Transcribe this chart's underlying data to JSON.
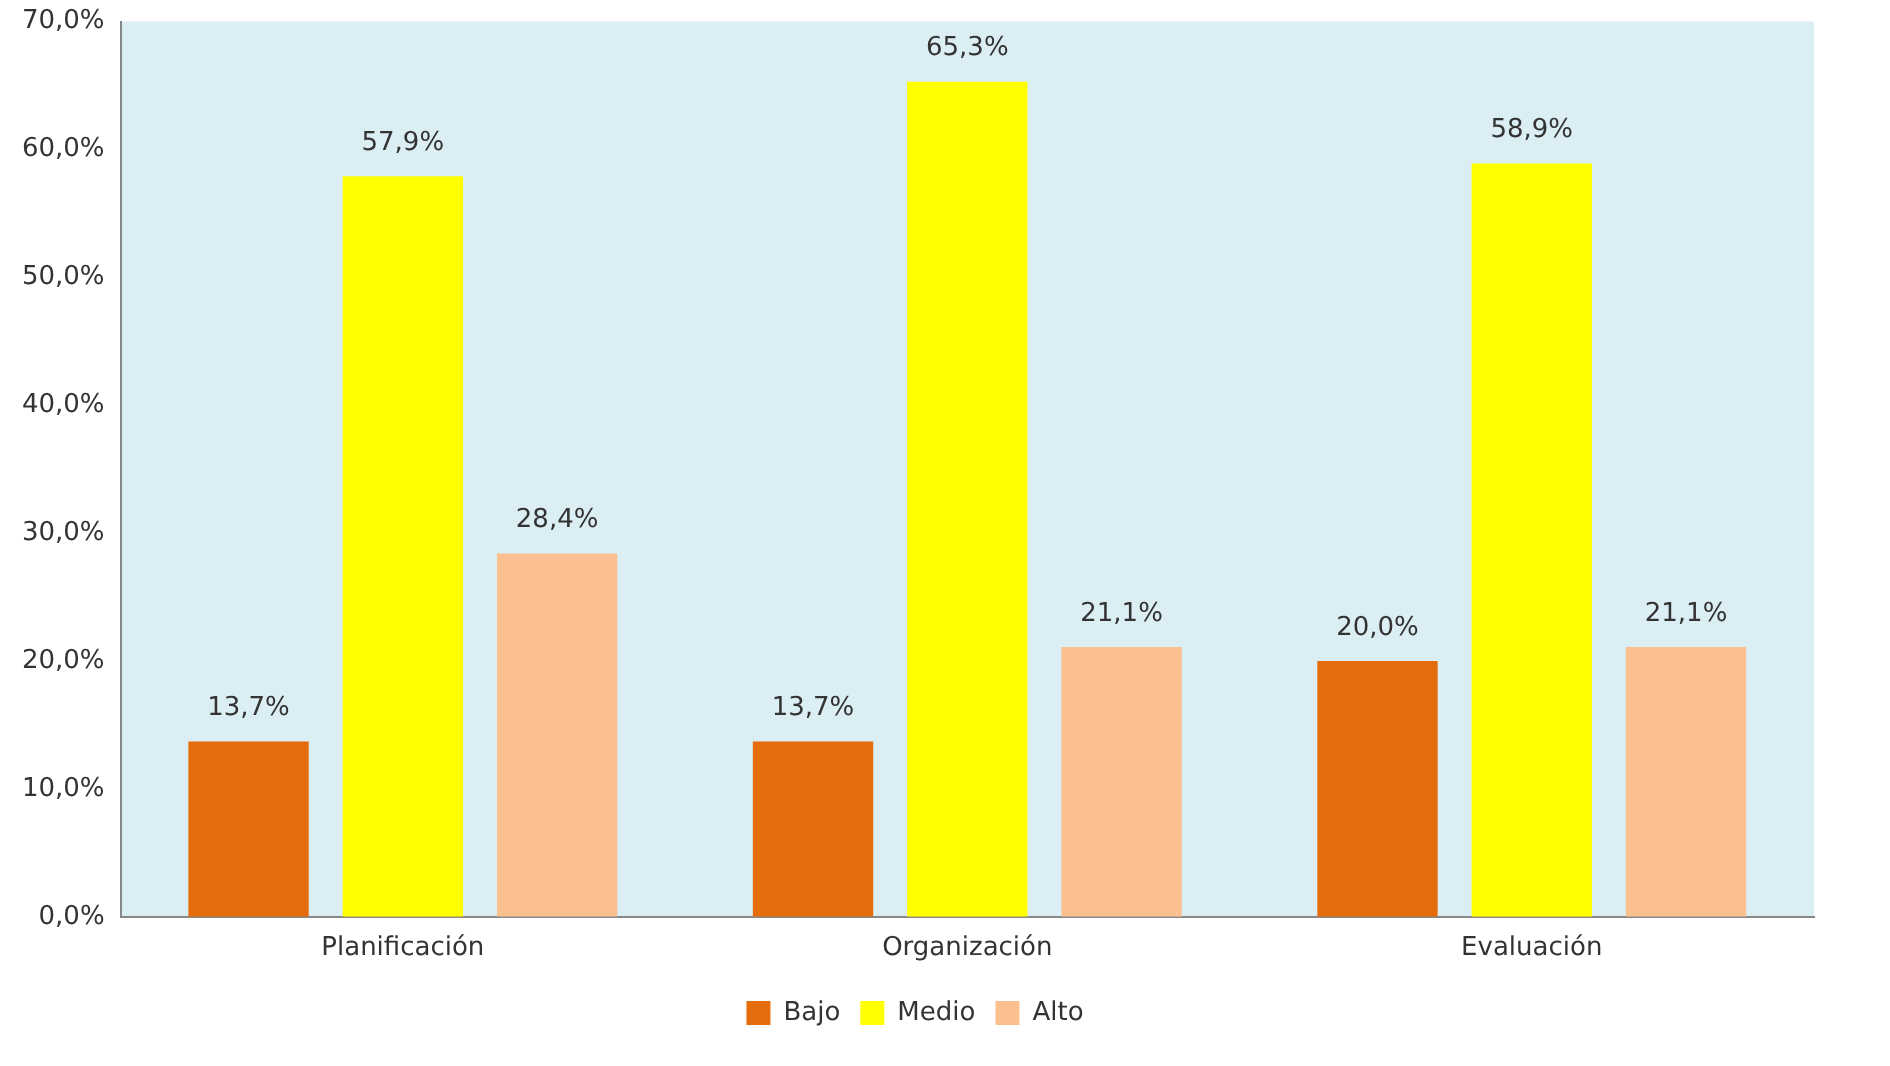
{
  "chart_data": {
    "type": "bar",
    "categories": [
      "Planificación",
      "Organización",
      "Evaluación"
    ],
    "series": [
      {
        "name": "Bajo",
        "color": "#e46c0a",
        "values": [
          13.7,
          13.7,
          20.0
        ],
        "value_labels": [
          "13,7%",
          "13,7%",
          "20,0%"
        ]
      },
      {
        "name": "Medio",
        "color": "#ffff00",
        "values": [
          57.9,
          65.3,
          58.9
        ],
        "value_labels": [
          "57,9%",
          "65,3%",
          "58,9%"
        ]
      },
      {
        "name": "Alto",
        "color": "#fac090",
        "values": [
          28.4,
          21.1,
          21.1
        ],
        "value_labels": [
          "28,4%",
          "21,1%",
          "21,1%"
        ]
      }
    ],
    "ylim": [
      0,
      70
    ],
    "yticks": [
      {
        "value": 0,
        "label": "0,0%"
      },
      {
        "value": 10,
        "label": "10,0%"
      },
      {
        "value": 20,
        "label": "20,0%"
      },
      {
        "value": 30,
        "label": "30,0%"
      },
      {
        "value": 40,
        "label": "40,0%"
      },
      {
        "value": 50,
        "label": "50,0%"
      },
      {
        "value": 60,
        "label": "60,0%"
      },
      {
        "value": 70,
        "label": "70,0%"
      }
    ],
    "grid": false,
    "legend": "bottom"
  }
}
